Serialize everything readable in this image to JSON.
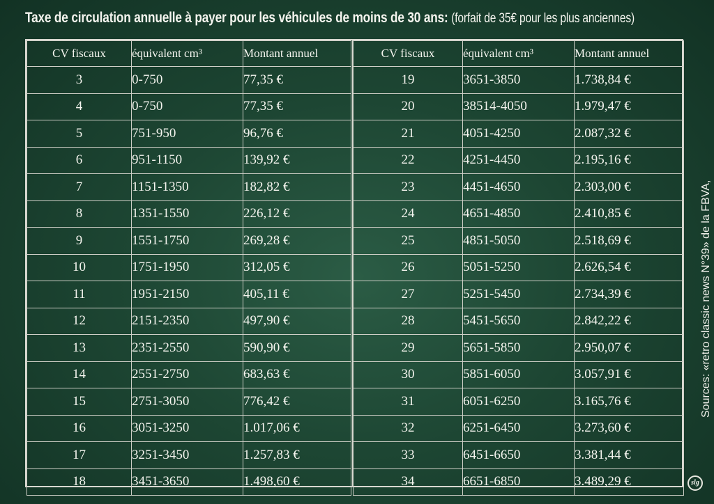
{
  "title": {
    "main": "Taxe de circulation annuelle à payer pour les véhicules de moins de 30 ans:",
    "sub": "(forfait de 35€ pour les plus anciennes)"
  },
  "headers": {
    "cv": "CV fiscaux",
    "cc": "équivalent cm³",
    "amount": "Montant annuel"
  },
  "left_rows": [
    [
      "3",
      "0-750",
      "77,35 €"
    ],
    [
      "4",
      "0-750",
      "77,35 €"
    ],
    [
      "5",
      "751-950",
      "96,76 €"
    ],
    [
      "6",
      "951-1150",
      "139,92 €"
    ],
    [
      "7",
      "1151-1350",
      "182,82 €"
    ],
    [
      "8",
      "1351-1550",
      "226,12 €"
    ],
    [
      "9",
      "1551-1750",
      "269,28 €"
    ],
    [
      "10",
      "1751-1950",
      "312,05 €"
    ],
    [
      "11",
      "1951-2150",
      "405,11 €"
    ],
    [
      "12",
      "2151-2350",
      "497,90 €"
    ],
    [
      "13",
      "2351-2550",
      "590,90 €"
    ],
    [
      "14",
      "2551-2750",
      "683,63 €"
    ],
    [
      "15",
      "2751-3050",
      "776,42 €"
    ],
    [
      "16",
      "3051-3250",
      "1.017,06 €"
    ],
    [
      "17",
      "3251-3450",
      "1.257,83 €"
    ],
    [
      "18",
      "3451-3650",
      "1.498,60 €"
    ]
  ],
  "right_rows": [
    [
      "19",
      "3651-3850",
      "1.738,84 €"
    ],
    [
      "20",
      "38514-4050",
      "1.979,47 €"
    ],
    [
      "21",
      "4051-4250",
      "2.087,32 €"
    ],
    [
      "22",
      "4251-4450",
      "2.195,16 €"
    ],
    [
      "23",
      "4451-4650",
      "2.303,00 €"
    ],
    [
      "24",
      "4651-4850",
      "2.410,85 €"
    ],
    [
      "25",
      "4851-5050",
      "2.518,69 €"
    ],
    [
      "26",
      "5051-5250",
      "2.626,54 €"
    ],
    [
      "27",
      "5251-5450",
      "2.734,39 €"
    ],
    [
      "28",
      "5451-5650",
      "2.842,22 €"
    ],
    [
      "29",
      "5651-5850",
      "2.950,07 €"
    ],
    [
      "30",
      "5851-6050",
      "3.057,91 €"
    ],
    [
      "31",
      "6051-6250",
      "3.165,76 €"
    ],
    [
      "32",
      "6251-6450",
      "3.273,60 €"
    ],
    [
      "33",
      "6451-6650",
      "3.381,44 €"
    ],
    [
      "34",
      "6651-6850",
      "3.489,29 €"
    ]
  ],
  "source": "Sources:  «retro classic news N°39» de la FBVA,",
  "logo": "slg"
}
